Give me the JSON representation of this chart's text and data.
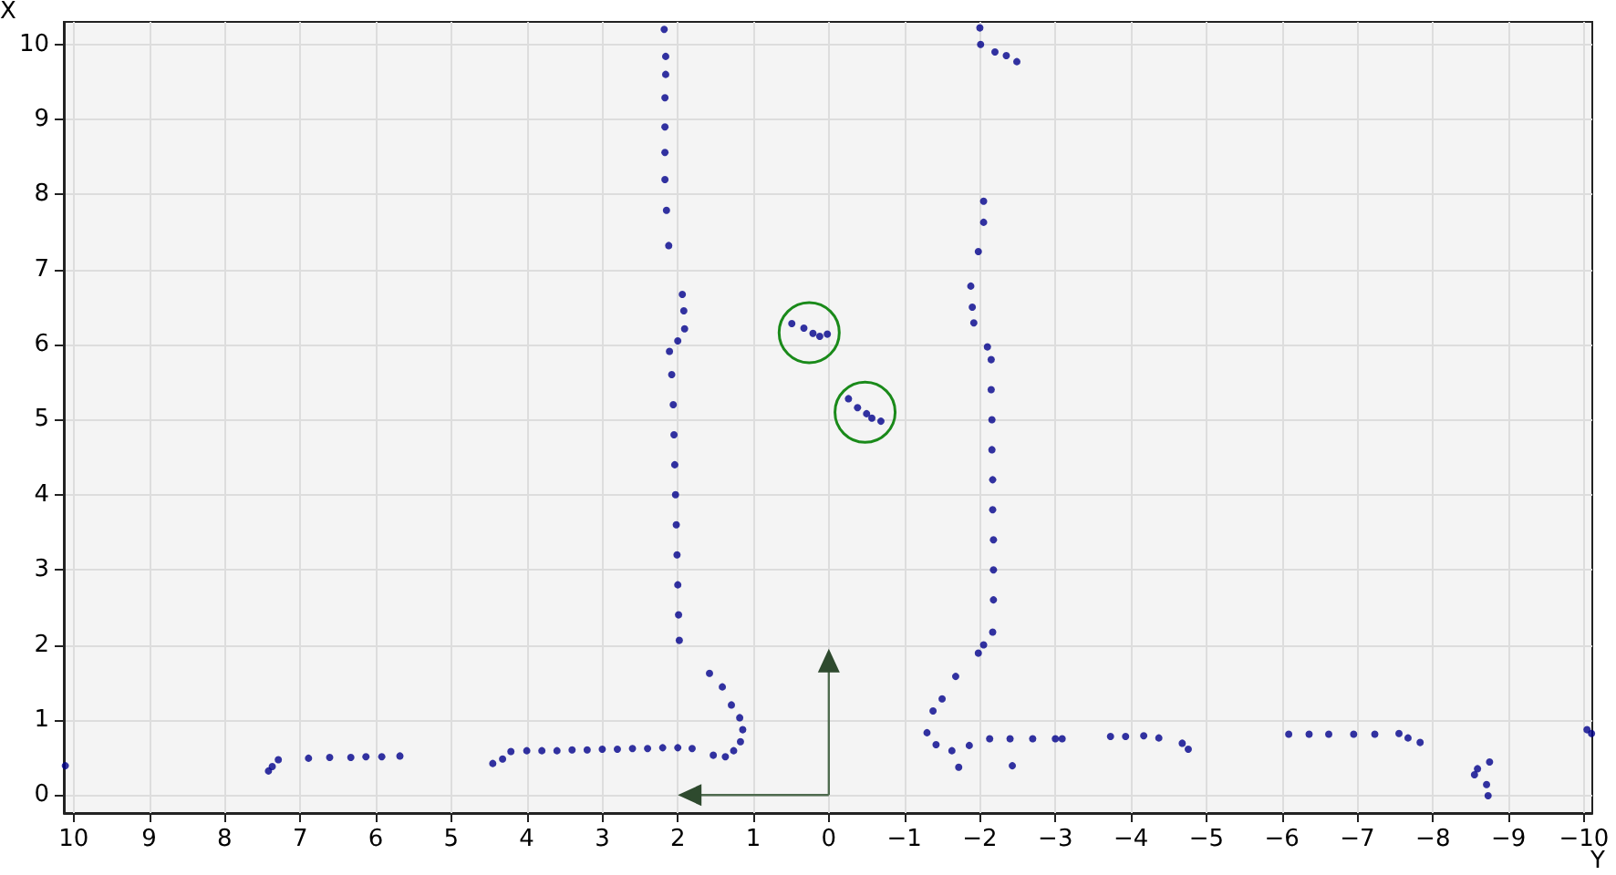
{
  "chart_data": {
    "type": "scatter",
    "xlabel": "Y",
    "ylabel": "X",
    "xlim": [
      10.13,
      -10.11
    ],
    "ylim": [
      -0.24,
      10.3
    ],
    "xticks": [
      10,
      9,
      8,
      7,
      6,
      5,
      4,
      3,
      2,
      1,
      0,
      -1,
      -2,
      -3,
      -4,
      -5,
      -6,
      -7,
      -8,
      -9,
      -10
    ],
    "yticks": [
      0,
      1,
      2,
      3,
      4,
      5,
      6,
      7,
      8,
      9,
      10
    ],
    "grid": true,
    "marker": "circle",
    "series": [
      {
        "color": "#00008b",
        "x": [
          10.11,
          7.42,
          7.37,
          7.29,
          6.89,
          6.61,
          6.33,
          6.13,
          5.92,
          5.68,
          4.45,
          4.32,
          4.21,
          4.0,
          3.8,
          3.6,
          3.4,
          3.2,
          3.0,
          2.8,
          2.6,
          2.4,
          2.2,
          2.0,
          1.81,
          1.53,
          1.37,
          1.26,
          1.17,
          1.14,
          1.18,
          1.29,
          1.41,
          1.58,
          1.98,
          1.99,
          2.0,
          2.01,
          2.02,
          2.03,
          2.04,
          2.05,
          2.06,
          2.08,
          2.11,
          2.0,
          1.91,
          1.92,
          1.94,
          2.12,
          2.15,
          2.17,
          2.17,
          2.17,
          2.17,
          2.16,
          2.16,
          2.18,
          0.49,
          0.33,
          0.21,
          0.12,
          0.02,
          -0.26,
          -0.38,
          -0.5,
          -0.57,
          -0.69,
          -2.0,
          -2.01,
          -2.2,
          -2.35,
          -2.49,
          -2.05,
          -2.05,
          -1.98,
          -1.88,
          -1.9,
          -1.92,
          -2.1,
          -2.15,
          -2.15,
          -2.16,
          -2.16,
          -2.17,
          -2.17,
          -2.18,
          -2.18,
          -2.18,
          -2.17,
          -2.05,
          -1.98,
          -1.68,
          -1.5,
          -1.38,
          -1.3,
          -1.42,
          -1.63,
          -1.86,
          -1.72,
          -2.13,
          -2.4,
          -2.7,
          -3.0,
          -3.09,
          -2.43,
          -3.73,
          -3.93,
          -4.17,
          -4.37,
          -4.68,
          -4.76,
          -6.09,
          -6.36,
          -6.62,
          -6.95,
          -7.23,
          -7.55,
          -7.67,
          -7.83,
          -8.55,
          -8.59,
          -8.75,
          -8.71,
          -8.73,
          -10.04,
          -10.1
        ],
        "values": [
          0.39,
          0.32,
          0.38,
          0.47,
          0.49,
          0.5,
          0.5,
          0.51,
          0.51,
          0.52,
          0.42,
          0.48,
          0.58,
          0.59,
          0.59,
          0.59,
          0.6,
          0.6,
          0.61,
          0.61,
          0.62,
          0.62,
          0.63,
          0.63,
          0.62,
          0.53,
          0.51,
          0.59,
          0.71,
          0.87,
          1.03,
          1.2,
          1.44,
          1.62,
          2.06,
          2.4,
          2.8,
          3.2,
          3.6,
          4.0,
          4.4,
          4.8,
          5.2,
          5.6,
          5.91,
          6.05,
          6.21,
          6.45,
          6.67,
          7.32,
          7.79,
          8.2,
          8.56,
          8.9,
          9.29,
          9.6,
          9.84,
          10.2,
          6.28,
          6.22,
          6.15,
          6.11,
          6.14,
          5.28,
          5.16,
          5.08,
          5.02,
          4.98,
          10.22,
          10.0,
          9.9,
          9.85,
          9.77,
          7.91,
          7.63,
          7.24,
          6.78,
          6.5,
          6.29,
          5.97,
          5.8,
          5.4,
          5.0,
          4.6,
          4.2,
          3.8,
          3.4,
          3.0,
          2.6,
          2.17,
          2.0,
          1.89,
          1.58,
          1.28,
          1.12,
          0.83,
          0.67,
          0.59,
          0.66,
          0.37,
          0.75,
          0.75,
          0.75,
          0.75,
          0.75,
          0.39,
          0.78,
          0.78,
          0.79,
          0.76,
          0.69,
          0.61,
          0.81,
          0.81,
          0.81,
          0.81,
          0.81,
          0.82,
          0.76,
          0.7,
          0.27,
          0.35,
          0.44,
          0.14,
          -0.01,
          0.87,
          0.82
        ]
      }
    ]
  }
}
